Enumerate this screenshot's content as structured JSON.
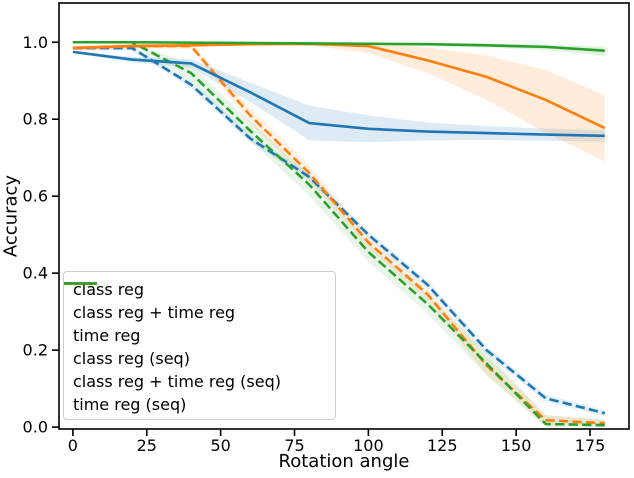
{
  "chart_data": {
    "type": "line",
    "title": "",
    "xlabel": "Rotation angle",
    "ylabel": "Accuracy",
    "xlim": [
      -4.7,
      188.2
    ],
    "ylim": [
      -0.005,
      1.102
    ],
    "x_ticks": [
      0,
      25,
      50,
      75,
      100,
      125,
      150,
      175
    ],
    "y_tick_labels": [
      "0.0",
      "0.2",
      "0.4",
      "0.6",
      "0.8",
      "1.0"
    ],
    "y_ticks": [
      0.0,
      0.2,
      0.4,
      0.6,
      0.8,
      1.0
    ],
    "grid": false,
    "legend_position": "lower left",
    "x": [
      0,
      20,
      40,
      60,
      80,
      100,
      120,
      140,
      160,
      180
    ],
    "series": [
      {
        "name": "class reg",
        "color": "#1f77b4",
        "style": "dashed",
        "values": [
          0.985,
          0.985,
          0.89,
          0.75,
          0.65,
          0.5,
          0.37,
          0.2,
          0.075,
          0.036
        ],
        "band_lower": [
          0.98,
          0.978,
          0.88,
          0.74,
          0.64,
          0.49,
          0.36,
          0.19,
          0.065,
          0.028
        ],
        "band_upper": [
          0.99,
          0.992,
          0.9,
          0.76,
          0.66,
          0.51,
          0.38,
          0.21,
          0.085,
          0.044
        ]
      },
      {
        "name": "class reg + time reg",
        "color": "#ff7f0e",
        "style": "dashed",
        "values": [
          0.985,
          0.99,
          0.99,
          0.81,
          0.66,
          0.48,
          0.345,
          0.16,
          0.018,
          0.01
        ],
        "band_lower": [
          0.98,
          0.985,
          0.982,
          0.79,
          0.64,
          0.465,
          0.33,
          0.135,
          0.004,
          0.002
        ],
        "band_upper": [
          0.99,
          0.995,
          0.998,
          0.83,
          0.68,
          0.495,
          0.36,
          0.185,
          0.032,
          0.018
        ]
      },
      {
        "name": "time reg",
        "color": "#2ca02c",
        "style": "dashed",
        "values": [
          1.0,
          1.0,
          0.92,
          0.77,
          0.63,
          0.455,
          0.32,
          0.165,
          0.008,
          0.005
        ],
        "band_lower": [
          0.997,
          0.995,
          0.9,
          0.745,
          0.6,
          0.43,
          0.295,
          0.135,
          0.0,
          0.0
        ],
        "band_upper": [
          1.003,
          1.003,
          0.94,
          0.795,
          0.655,
          0.48,
          0.345,
          0.195,
          0.03,
          0.02
        ]
      },
      {
        "name": "class reg (seq)",
        "color": "#1f77b4",
        "style": "solid",
        "values": [
          0.975,
          0.955,
          0.945,
          0.87,
          0.79,
          0.775,
          0.768,
          0.764,
          0.76,
          0.757
        ],
        "band_lower": [
          0.972,
          0.948,
          0.934,
          0.845,
          0.745,
          0.74,
          0.745,
          0.746,
          0.744,
          0.742
        ],
        "band_upper": [
          0.978,
          0.962,
          0.956,
          0.895,
          0.835,
          0.81,
          0.791,
          0.782,
          0.776,
          0.772
        ]
      },
      {
        "name": "class reg + time reg (seq)",
        "color": "#ff7f0e",
        "style": "solid",
        "values": [
          0.985,
          0.99,
          0.992,
          0.995,
          0.996,
          0.99,
          0.953,
          0.91,
          0.85,
          0.777
        ],
        "band_lower": [
          0.98,
          0.985,
          0.988,
          0.991,
          0.991,
          0.972,
          0.92,
          0.85,
          0.765,
          0.69
        ],
        "band_upper": [
          0.99,
          0.995,
          0.996,
          0.998,
          0.999,
          0.999,
          0.986,
          0.966,
          0.928,
          0.862
        ]
      },
      {
        "name": "time reg (seq)",
        "color": "#2ca02c",
        "style": "solid",
        "values": [
          1.0,
          1.0,
          0.999,
          0.998,
          0.997,
          0.996,
          0.995,
          0.992,
          0.988,
          0.978
        ],
        "band_lower": [
          0.997,
          0.997,
          0.996,
          0.995,
          0.994,
          0.993,
          0.99,
          0.986,
          0.98,
          0.965
        ],
        "band_upper": [
          1.003,
          1.003,
          1.002,
          1.001,
          1.0,
          0.999,
          0.999,
          0.997,
          0.994,
          0.988
        ]
      }
    ]
  }
}
